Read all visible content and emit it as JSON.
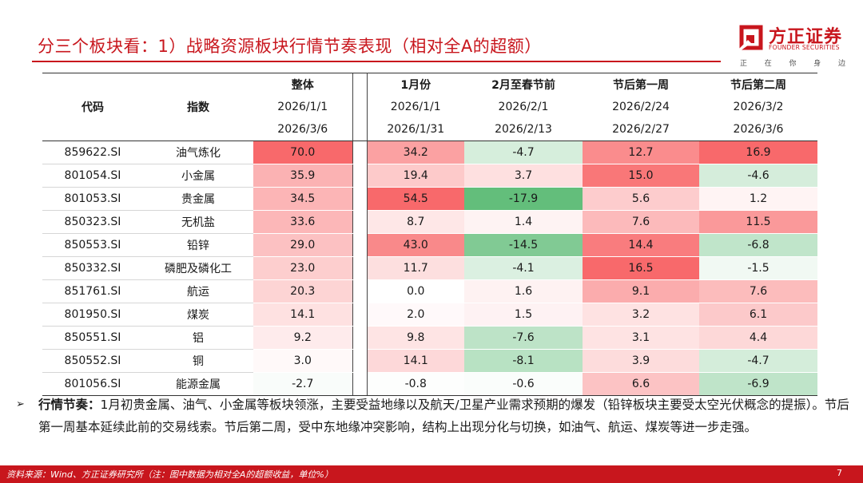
{
  "title": "分三个板块看：1）战略资源板块行情节奏表现（相对全A的超额）",
  "logo": {
    "name_cn": "方正证券",
    "name_en": "FOUNDER SECURITIES",
    "tagline": [
      "正",
      "在",
      "你",
      "身",
      "边"
    ],
    "brand_color": "#c8161d"
  },
  "table": {
    "headers": {
      "code": "代码",
      "index": "指数",
      "periods": [
        {
          "label": "整体",
          "start": "2026/1/1",
          "end": "2026/3/6"
        },
        {
          "label": "1月份",
          "start": "2026/1/1",
          "end": "2026/1/31"
        },
        {
          "label": "2月至春节前",
          "start": "2026/2/1",
          "end": "2026/2/13"
        },
        {
          "label": "节后第一周",
          "start": "2026/2/24",
          "end": "2026/2/27"
        },
        {
          "label": "节后第二周",
          "start": "2026/3/2",
          "end": "2026/3/6"
        }
      ]
    },
    "rows": [
      {
        "code": "859622.SI",
        "name": "油气炼化",
        "values": [
          "70.0",
          "34.2",
          "-4.7",
          "12.7",
          "16.9"
        ]
      },
      {
        "code": "801054.SI",
        "name": "小金属",
        "values": [
          "35.9",
          "19.4",
          "3.7",
          "15.0",
          "-4.6"
        ]
      },
      {
        "code": "801053.SI",
        "name": "贵金属",
        "values": [
          "34.5",
          "54.5",
          "-17.9",
          "5.6",
          "1.2"
        ]
      },
      {
        "code": "850323.SI",
        "name": "无机盐",
        "values": [
          "33.6",
          "8.7",
          "1.4",
          "7.6",
          "11.5"
        ]
      },
      {
        "code": "850553.SI",
        "name": "铅锌",
        "values": [
          "29.0",
          "43.0",
          "-14.5",
          "14.4",
          "-6.8"
        ]
      },
      {
        "code": "850332.SI",
        "name": "磷肥及磷化工",
        "values": [
          "23.0",
          "11.7",
          "-4.1",
          "16.5",
          "-1.5"
        ]
      },
      {
        "code": "851761.SI",
        "name": "航运",
        "values": [
          "20.3",
          "0.0",
          "1.6",
          "9.1",
          "7.6"
        ]
      },
      {
        "code": "801950.SI",
        "name": "煤炭",
        "values": [
          "14.1",
          "2.0",
          "1.5",
          "3.2",
          "6.1"
        ]
      },
      {
        "code": "850551.SI",
        "name": "铝",
        "values": [
          "9.2",
          "9.8",
          "-7.6",
          "3.1",
          "4.4"
        ]
      },
      {
        "code": "850552.SI",
        "name": "铜",
        "values": [
          "3.0",
          "14.1",
          "-8.1",
          "3.9",
          "-4.7"
        ]
      },
      {
        "code": "801056.SI",
        "name": "能源金属",
        "values": [
          "-2.7",
          "-0.8",
          "-0.6",
          "6.6",
          "-6.9"
        ]
      }
    ],
    "colors": {
      "positive": "#f8696b",
      "negative": "#63be7b",
      "neutral": "#ffffff"
    }
  },
  "bullet": {
    "label": "行情节奏：",
    "text": "1月初贵金属、油气、小金属等板块领涨，主要受益地缘以及航天/卫星产业需求预期的爆发（铅锌板块主要受太空光伏概念的提振）。节后第一周基本延续此前的交易线索。节后第二周，受中东地缘冲突影响，结构上出现分化与切换，如油气、航运、煤炭等进一步走强。"
  },
  "footer": {
    "source": "资料来源：Wind、方正证券研究所（注：图中数据为相对全A的超额收益，单位%）",
    "page": "7"
  }
}
